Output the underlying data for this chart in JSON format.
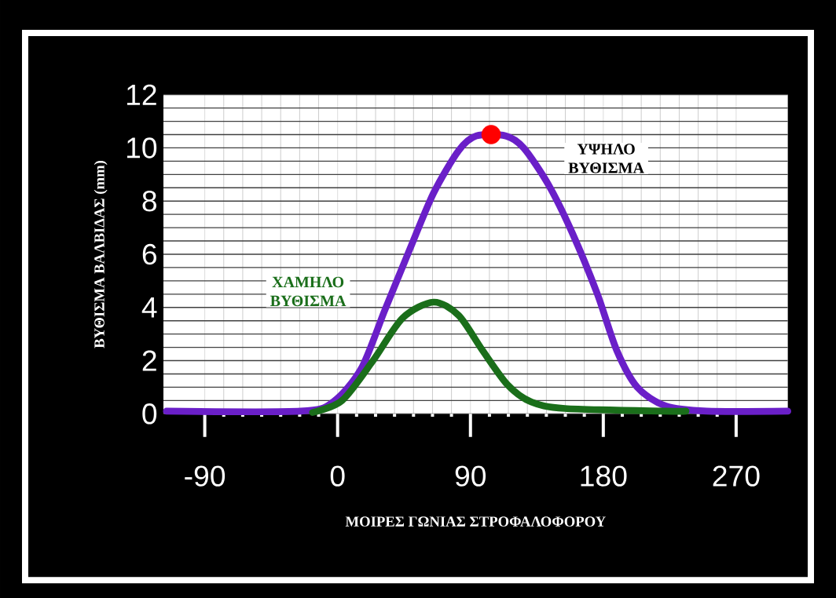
{
  "chart_data": {
    "type": "line",
    "xlabel": "ΜΟΙΡΕΣ ΓΩΝΙΑΣ ΣΤΡΟΦΑΛΟΦΟΡΟΥ",
    "ylabel": "ΒΥΘΙΣΜΑ ΒΑΛΒΙΔΑΣ (mm)",
    "xlim": [
      -118,
      305
    ],
    "ylim": [
      0,
      12
    ],
    "xticks": [
      -90,
      0,
      90,
      180,
      270
    ],
    "yticks": [
      0,
      2,
      4,
      6,
      8,
      10,
      12
    ],
    "grid": true,
    "legend": false,
    "marker": "none",
    "line_style": "solid",
    "series": [
      {
        "name": "ΥΨΗΛΟ ΒΥΘΙΣΜΑ",
        "color": "#6a1fc8",
        "x": [
          -116,
          -25,
          -3,
          16,
          32,
          49,
          65,
          82,
          94,
          114,
          126,
          143,
          159,
          176,
          189,
          203,
          222,
          250,
          305
        ],
        "values": [
          0.1,
          0.1,
          0.45,
          1.7,
          3.9,
          6.2,
          8.3,
          9.9,
          10.45,
          10.45,
          10.0,
          8.6,
          6.8,
          4.5,
          2.4,
          1.0,
          0.3,
          0.1,
          0.1
        ]
      },
      {
        "name": "ΧΑΜΗΛΟ ΒΥΘΙΣΜΑ",
        "color": "#1a6e1a",
        "x": [
          -17,
          3,
          24,
          44,
          65,
          82,
          98,
          115,
          131,
          154,
          222,
          236
        ],
        "values": [
          0.05,
          0.5,
          2.0,
          3.6,
          4.2,
          3.7,
          2.4,
          1.1,
          0.45,
          0.2,
          0.1,
          0.1
        ]
      },
      {
        "type": "scatter",
        "color": "#ff0000",
        "x": [
          104
        ],
        "values": [
          10.5
        ]
      }
    ]
  }
}
